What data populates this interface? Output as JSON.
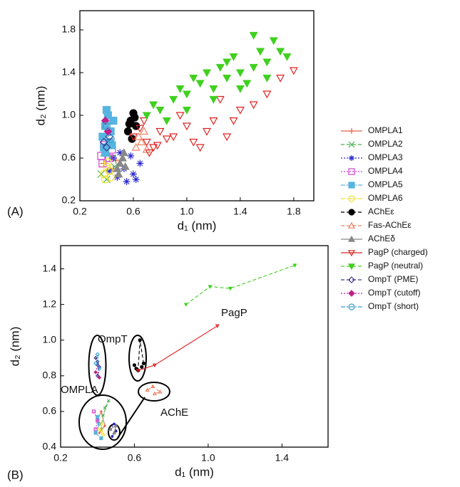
{
  "chart_data": [
    {
      "type": "scatter",
      "panel": "(A)",
      "x_label": "d₁ (nm)",
      "y_label": "d₂ (nm)",
      "xlim": [
        0.2,
        1.95
      ],
      "ylim": [
        0.2,
        1.98
      ],
      "xticks": [
        0.2,
        0.6,
        {
          "value": 1,
          "label": "1.0"
        },
        1.4,
        1.8
      ],
      "yticks": [
        0.2,
        0.6,
        {
          "value": 1,
          "label": "1.0"
        },
        1.4,
        1.8
      ],
      "legend": "right",
      "series": [
        {
          "name": "OMPLA1",
          "color": "#e8604a",
          "marker": "plus",
          "filled": false,
          "dash": "solid",
          "x": [
            0.38,
            0.42,
            0.45,
            0.4,
            0.47
          ],
          "values": [
            0.55,
            0.62,
            0.5,
            0.7,
            0.58
          ]
        },
        {
          "name": "OMPLA2",
          "color": "#4caf50",
          "marker": "x",
          "filled": false,
          "dash": "dash",
          "x": [
            0.36,
            0.4,
            0.44,
            0.38,
            0.46
          ],
          "values": [
            0.45,
            0.4,
            0.6,
            0.65,
            0.52
          ]
        },
        {
          "name": "OMPLA3",
          "color": "#2a2ad0",
          "marker": "star",
          "filled": false,
          "dash": "dot",
          "x": [
            0.42,
            0.48,
            0.55,
            0.6,
            0.65,
            0.5,
            0.58,
            0.62,
            0.45,
            0.53
          ],
          "values": [
            0.48,
            0.42,
            0.38,
            0.45,
            0.55,
            0.65,
            0.62,
            0.4,
            0.6,
            0.5
          ]
        },
        {
          "name": "OMPLA4",
          "color": "#d040d0",
          "marker": "square",
          "filled": false,
          "dash": "dot",
          "x": [
            0.36,
            0.38,
            0.42,
            0.37,
            0.44
          ],
          "values": [
            0.62,
            0.72,
            0.6,
            0.55,
            0.68
          ]
        },
        {
          "name": "OMPLA5",
          "color": "#56b4e0",
          "marker": "square",
          "filled": true,
          "dash": "dashdot",
          "x": [
            0.37,
            0.39,
            0.41,
            0.43,
            0.38,
            0.42,
            0.4,
            0.45,
            0.39,
            0.44
          ],
          "values": [
            0.8,
            0.9,
            1.0,
            0.85,
            0.7,
            0.75,
            1.05,
            0.95,
            0.65,
            0.72
          ]
        },
        {
          "name": "OMPLA6",
          "color": "#f0e030",
          "marker": "circle",
          "filled": false,
          "dash": "dashdot",
          "x": [
            0.38,
            0.4,
            0.42,
            0.39,
            0.41,
            0.43
          ],
          "values": [
            0.45,
            0.52,
            0.48,
            0.4,
            0.56,
            0.42
          ]
        },
        {
          "name": "AChEε",
          "color": "#000000",
          "marker": "circle",
          "filled": true,
          "dash": "dash",
          "x": [
            0.56,
            0.58,
            0.6,
            0.62,
            0.59,
            0.61,
            0.57
          ],
          "values": [
            0.85,
            0.95,
            1.02,
            0.9,
            0.78,
            0.98,
            0.92
          ]
        },
        {
          "name": "Fas-AChEε",
          "color": "#f08060",
          "marker": "triangle",
          "filled": false,
          "dash": "dash",
          "x": [
            0.62,
            0.66,
            0.7,
            0.64,
            0.68
          ],
          "values": [
            0.7,
            0.75,
            0.68,
            0.8,
            0.85
          ]
        },
        {
          "name": "AChEδ",
          "color": "#888888",
          "marker": "triangle",
          "filled": true,
          "dash": "solid",
          "x": [
            0.48,
            0.5,
            0.52,
            0.54,
            0.49,
            0.53
          ],
          "values": [
            0.5,
            0.55,
            0.6,
            0.52,
            0.45,
            0.65
          ]
        },
        {
          "name": "PagP (charged)",
          "color": "#e02020",
          "marker": "triangle-down",
          "filled": false,
          "dash": "solid",
          "x": [
            0.6,
            0.65,
            0.7,
            0.75,
            0.8,
            0.85,
            0.68,
            0.72,
            0.78,
            0.9,
            1.0,
            1.1,
            1.2,
            1.3,
            1.4,
            1.5,
            1.6,
            1.7,
            1.8,
            1.15,
            1.35,
            0.95,
            1.05,
            1.25
          ],
          "values": [
            0.8,
            0.88,
            0.75,
            0.7,
            0.85,
            0.78,
            0.95,
            0.65,
            0.72,
            0.8,
            0.9,
            0.7,
            0.95,
            0.8,
            1.05,
            1.1,
            1.2,
            1.35,
            1.42,
            0.85,
            0.95,
            1.0,
            0.75,
            1.15
          ]
        },
        {
          "name": "PagP (neutral)",
          "color": "#40d020",
          "marker": "triangle-down",
          "filled": true,
          "dash": "dash",
          "x": [
            0.7,
            0.8,
            0.9,
            1.0,
            1.1,
            1.2,
            1.3,
            1.4,
            1.5,
            1.6,
            1.7,
            0.85,
            0.95,
            1.05,
            1.15,
            1.25,
            1.35,
            1.45,
            1.55,
            1.65,
            1.75,
            1.0,
            1.2,
            1.4,
            1.6,
            0.75,
            1.3,
            1.5
          ],
          "values": [
            1.0,
            1.05,
            1.15,
            1.2,
            1.3,
            1.25,
            1.35,
            1.4,
            1.45,
            1.5,
            1.6,
            0.95,
            1.25,
            1.35,
            1.4,
            1.45,
            1.55,
            1.3,
            1.6,
            1.7,
            1.55,
            1.05,
            1.15,
            1.25,
            1.35,
            1.1,
            1.5,
            1.75
          ]
        },
        {
          "name": "OmpT (PME)",
          "color": "#3a3a90",
          "marker": "diamond",
          "filled": false,
          "dash": "dash",
          "x": [
            0.4,
            0.42,
            0.38
          ],
          "values": [
            0.7,
            0.8,
            0.75
          ]
        },
        {
          "name": "OmpT (cutoff)",
          "color": "#c0208c",
          "marker": "diamond",
          "filled": true,
          "dash": "dot",
          "x": [
            0.41,
            0.39
          ],
          "values": [
            0.85,
            0.95
          ]
        },
        {
          "name": "OmpT (short)",
          "color": "#3aa0d0",
          "marker": "circle",
          "filled": false,
          "dash": "dashdot",
          "x": [
            0.4,
            0.43
          ],
          "values": [
            0.9,
            0.78
          ]
        }
      ]
    },
    {
      "type": "line",
      "panel": "(B)",
      "x_label": "d₁ (nm)",
      "y_label": "d₂ (nm)",
      "xlim": [
        0.2,
        1.65
      ],
      "ylim": [
        0.4,
        1.53
      ],
      "xticks": [
        0.2,
        0.6,
        {
          "value": 1,
          "label": "1.0"
        },
        1.4
      ],
      "yticks": [
        0.4,
        0.6,
        0.8,
        {
          "value": 1,
          "label": "1.0"
        },
        1.2,
        1.4
      ],
      "annotations": [
        "PagP",
        "OmpT",
        "OMPLA",
        "AChE"
      ],
      "series": [
        {
          "color": "#e8604a",
          "x": [
            0.4,
            0.42,
            0.44,
            0.41
          ],
          "values": [
            0.55,
            0.6,
            0.52,
            0.48
          ]
        },
        {
          "color": "#4caf50",
          "x": [
            0.44,
            0.46,
            0.43,
            0.42
          ],
          "values": [
            0.62,
            0.66,
            0.58,
            0.5
          ]
        },
        {
          "color": "#2a2ad0",
          "x": [
            0.47,
            0.49,
            0.5,
            0.48
          ],
          "values": [
            0.5,
            0.53,
            0.49,
            0.46
          ]
        },
        {
          "color": "#d040d0",
          "x": [
            0.39,
            0.4,
            0.38
          ],
          "values": [
            0.5,
            0.55,
            0.6
          ]
        },
        {
          "color": "#56b4e0",
          "x": [
            0.4,
            0.41,
            0.39,
            0.42
          ],
          "values": [
            0.57,
            0.53,
            0.48,
            0.45
          ]
        },
        {
          "color": "#f0e030",
          "x": [
            0.41,
            0.43,
            0.42
          ],
          "values": [
            0.5,
            0.47,
            0.53
          ]
        },
        {
          "color": "#000000",
          "x": [
            0.6,
            0.61,
            0.62,
            0.63,
            0.65,
            0.64
          ],
          "values": [
            0.86,
            0.84,
            0.83,
            1.0,
            0.87,
            0.85
          ]
        },
        {
          "color": "#f08060",
          "x": [
            0.67,
            0.7,
            0.74,
            0.71
          ],
          "values": [
            0.72,
            0.74,
            0.71,
            0.7
          ]
        },
        {
          "color": "#888888",
          "x": [
            0.47,
            0.5,
            0.49
          ],
          "values": [
            0.5,
            0.52,
            0.48
          ]
        },
        {
          "color": "#e02020",
          "x": [
            0.62,
            0.71,
            1.05
          ],
          "values": [
            0.83,
            0.86,
            1.08
          ]
        },
        {
          "color": "#40d020",
          "x": [
            0.88,
            1.01,
            1.12,
            1.47
          ],
          "values": [
            1.2,
            1.3,
            1.29,
            1.42
          ]
        },
        {
          "color": "#3a3a90",
          "x": [
            0.4,
            0.41,
            0.39,
            0.4
          ],
          "values": [
            0.8,
            0.85,
            0.9,
            0.88
          ]
        },
        {
          "color": "#c0208c",
          "x": [
            0.39,
            0.4,
            0.41
          ],
          "values": [
            0.82,
            0.86,
            0.79
          ]
        },
        {
          "color": "#3aa0d0",
          "x": [
            0.4,
            0.41,
            0.39
          ],
          "values": [
            0.92,
            0.84,
            0.87
          ]
        }
      ]
    }
  ]
}
